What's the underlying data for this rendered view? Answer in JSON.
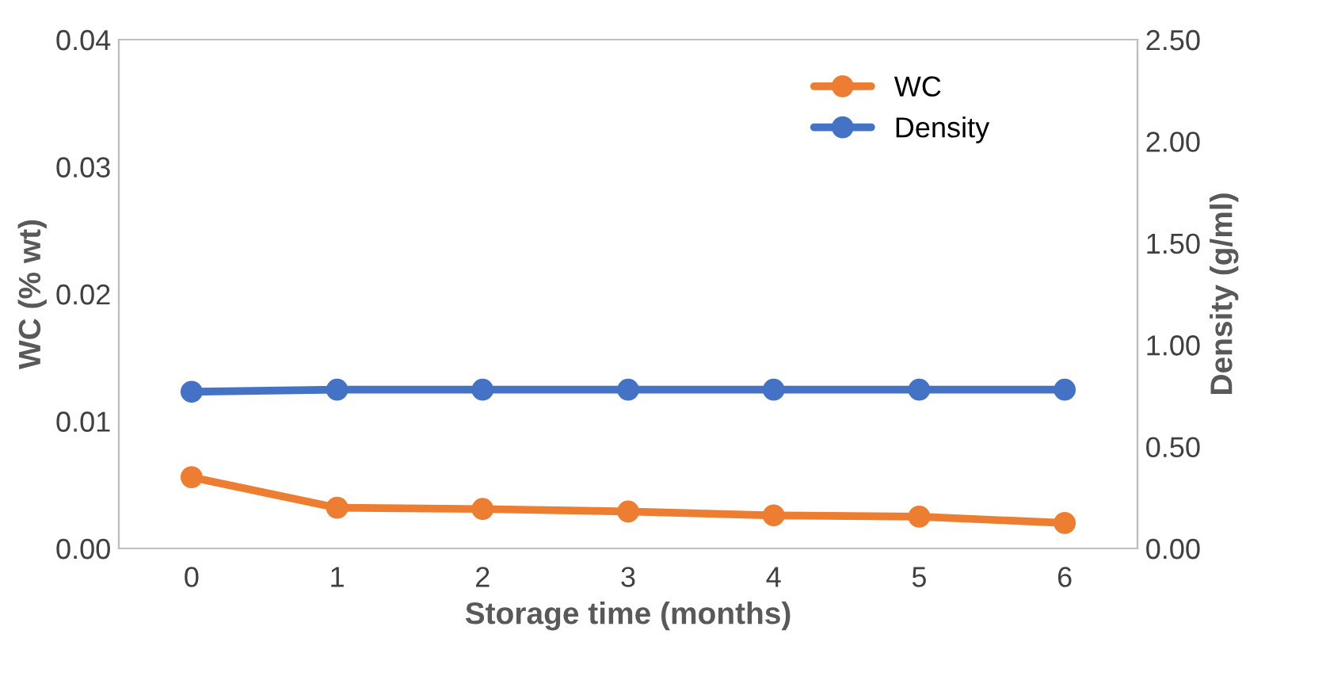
{
  "chart_data": {
    "type": "line",
    "xlabel": "Storage time (months)",
    "ylabel": "WC (% wt)",
    "y2label": "Density (g/ml)",
    "categories": [
      "0",
      "1",
      "2",
      "3",
      "4",
      "5",
      "6"
    ],
    "series": [
      {
        "name": "WC",
        "color": "#ed7d31",
        "values": [
          0.0056,
          0.0032,
          0.0031,
          0.0029,
          0.0026,
          0.0025,
          0.002
        ]
      },
      {
        "name": "Density",
        "color": "#4472c4",
        "axis": "y2",
        "values": [
          0.77,
          0.78,
          0.78,
          0.78,
          0.78,
          0.78,
          0.78
        ]
      }
    ],
    "ylim": [
      0,
      0.04
    ],
    "yticks": [
      {
        "value": 0,
        "label": "0.00"
      },
      {
        "value": 0.01,
        "label": "0.01"
      },
      {
        "value": 0.02,
        "label": "0.02"
      },
      {
        "value": 0.03,
        "label": "0.03"
      },
      {
        "value": 0.04,
        "label": "0.04"
      }
    ],
    "y2lim": [
      0,
      2.5
    ],
    "y2ticks": [
      {
        "value": 0,
        "label": "0.00"
      },
      {
        "value": 0.5,
        "label": "0.50"
      },
      {
        "value": 1,
        "label": "1.00"
      },
      {
        "value": 1.5,
        "label": "1.50"
      },
      {
        "value": 2,
        "label": "2.00"
      },
      {
        "value": 2.5,
        "label": "2.50"
      }
    ],
    "marker": "circle",
    "line_style": "solid",
    "legend": "top right",
    "grid": false
  }
}
